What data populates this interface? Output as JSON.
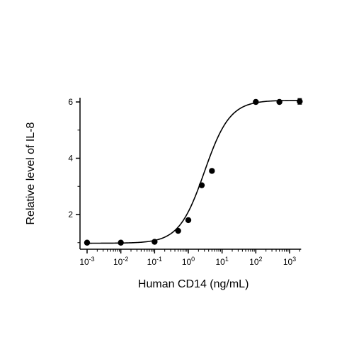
{
  "chart_data": {
    "type": "scatter",
    "xscale": "log",
    "xlabel": "Human CD14 (ng/mL)",
    "ylabel": "Relative level of IL-8",
    "xlim": [
      0.0007,
      2200
    ],
    "ylim": [
      0.9,
      6.15
    ],
    "x_ticks": [
      {
        "value": 0.001,
        "base": "10",
        "exp": "-3"
      },
      {
        "value": 0.01,
        "base": "10",
        "exp": "-2"
      },
      {
        "value": 0.1,
        "base": "10",
        "exp": "-1"
      },
      {
        "value": 1,
        "base": "10",
        "exp": "0"
      },
      {
        "value": 10,
        "base": "10",
        "exp": "1"
      },
      {
        "value": 100,
        "base": "10",
        "exp": "2"
      },
      {
        "value": 1000,
        "base": "10",
        "exp": "3"
      }
    ],
    "y_ticks": [
      2,
      4,
      6
    ],
    "points": [
      {
        "x": 0.001,
        "y": 1.0
      },
      {
        "x": 0.01,
        "y": 1.0
      },
      {
        "x": 0.1,
        "y": 1.03
      },
      {
        "x": 0.5,
        "y": 1.42
      },
      {
        "x": 1,
        "y": 1.8
      },
      {
        "x": 2.5,
        "y": 3.04
      },
      {
        "x": 5,
        "y": 3.55
      },
      {
        "x": 100,
        "y": 6.0
      },
      {
        "x": 500,
        "y": 6.0
      },
      {
        "x": 2000,
        "y": 6.02,
        "err": 0.1
      }
    ],
    "fit": {
      "model": "4PL",
      "bottom": 0.98,
      "top": 6.06,
      "ec50": 3.0,
      "hill": 1.15
    },
    "grid": false,
    "legend": "none",
    "colors": {
      "marker": "#000000",
      "line": "#000000",
      "axis": "#000000"
    }
  }
}
